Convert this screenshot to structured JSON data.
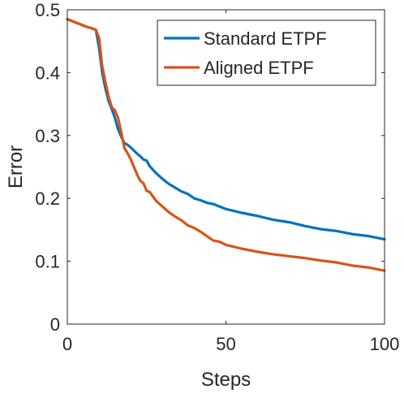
{
  "chart_data": {
    "type": "line",
    "title": "",
    "xlabel": "Steps",
    "ylabel": "Error",
    "xlim": [
      0,
      100
    ],
    "ylim": [
      0,
      0.5
    ],
    "xticks": [
      0,
      50,
      100
    ],
    "yticks": [
      0,
      0.1,
      0.2,
      0.3,
      0.4,
      0.5
    ],
    "xtick_labels": [
      "0",
      "50",
      "100"
    ],
    "ytick_labels": [
      "0",
      "0.1",
      "0.2",
      "0.3",
      "0.4",
      "0.5"
    ],
    "grid": false,
    "legend_position": "top-right",
    "series": [
      {
        "name": "Standard ETPF",
        "color": "#0072BD",
        "x": [
          0,
          2,
          4,
          6,
          8,
          9,
          10,
          11,
          12,
          13,
          14,
          15,
          16,
          17,
          18,
          19,
          20,
          21,
          22,
          23,
          24,
          25,
          26,
          28,
          30,
          32,
          34,
          36,
          38,
          40,
          42,
          44,
          46,
          48,
          50,
          55,
          60,
          65,
          70,
          75,
          80,
          85,
          90,
          95,
          100
        ],
        "y": [
          0.485,
          0.481,
          0.477,
          0.473,
          0.47,
          0.468,
          0.44,
          0.4,
          0.375,
          0.355,
          0.342,
          0.328,
          0.31,
          0.298,
          0.288,
          0.285,
          0.281,
          0.276,
          0.271,
          0.267,
          0.262,
          0.26,
          0.251,
          0.24,
          0.231,
          0.223,
          0.217,
          0.211,
          0.207,
          0.2,
          0.197,
          0.193,
          0.191,
          0.187,
          0.183,
          0.177,
          0.172,
          0.166,
          0.162,
          0.156,
          0.151,
          0.148,
          0.143,
          0.14,
          0.135
        ]
      },
      {
        "name": "Aligned ETPF",
        "color": "#D95319",
        "x": [
          0,
          2,
          4,
          6,
          8,
          9,
          10,
          11,
          12,
          13,
          14,
          15,
          16,
          17,
          18,
          19,
          20,
          21,
          22,
          23,
          24,
          25,
          26,
          28,
          30,
          32,
          34,
          36,
          38,
          40,
          42,
          44,
          46,
          48,
          50,
          55,
          60,
          65,
          70,
          75,
          80,
          85,
          90,
          95,
          100
        ],
        "y": [
          0.485,
          0.481,
          0.477,
          0.473,
          0.47,
          0.468,
          0.455,
          0.41,
          0.385,
          0.362,
          0.345,
          0.34,
          0.328,
          0.305,
          0.28,
          0.272,
          0.262,
          0.25,
          0.238,
          0.228,
          0.224,
          0.212,
          0.21,
          0.196,
          0.187,
          0.178,
          0.171,
          0.165,
          0.157,
          0.153,
          0.147,
          0.14,
          0.133,
          0.131,
          0.126,
          0.12,
          0.115,
          0.111,
          0.108,
          0.105,
          0.101,
          0.098,
          0.093,
          0.09,
          0.085
        ]
      }
    ]
  }
}
